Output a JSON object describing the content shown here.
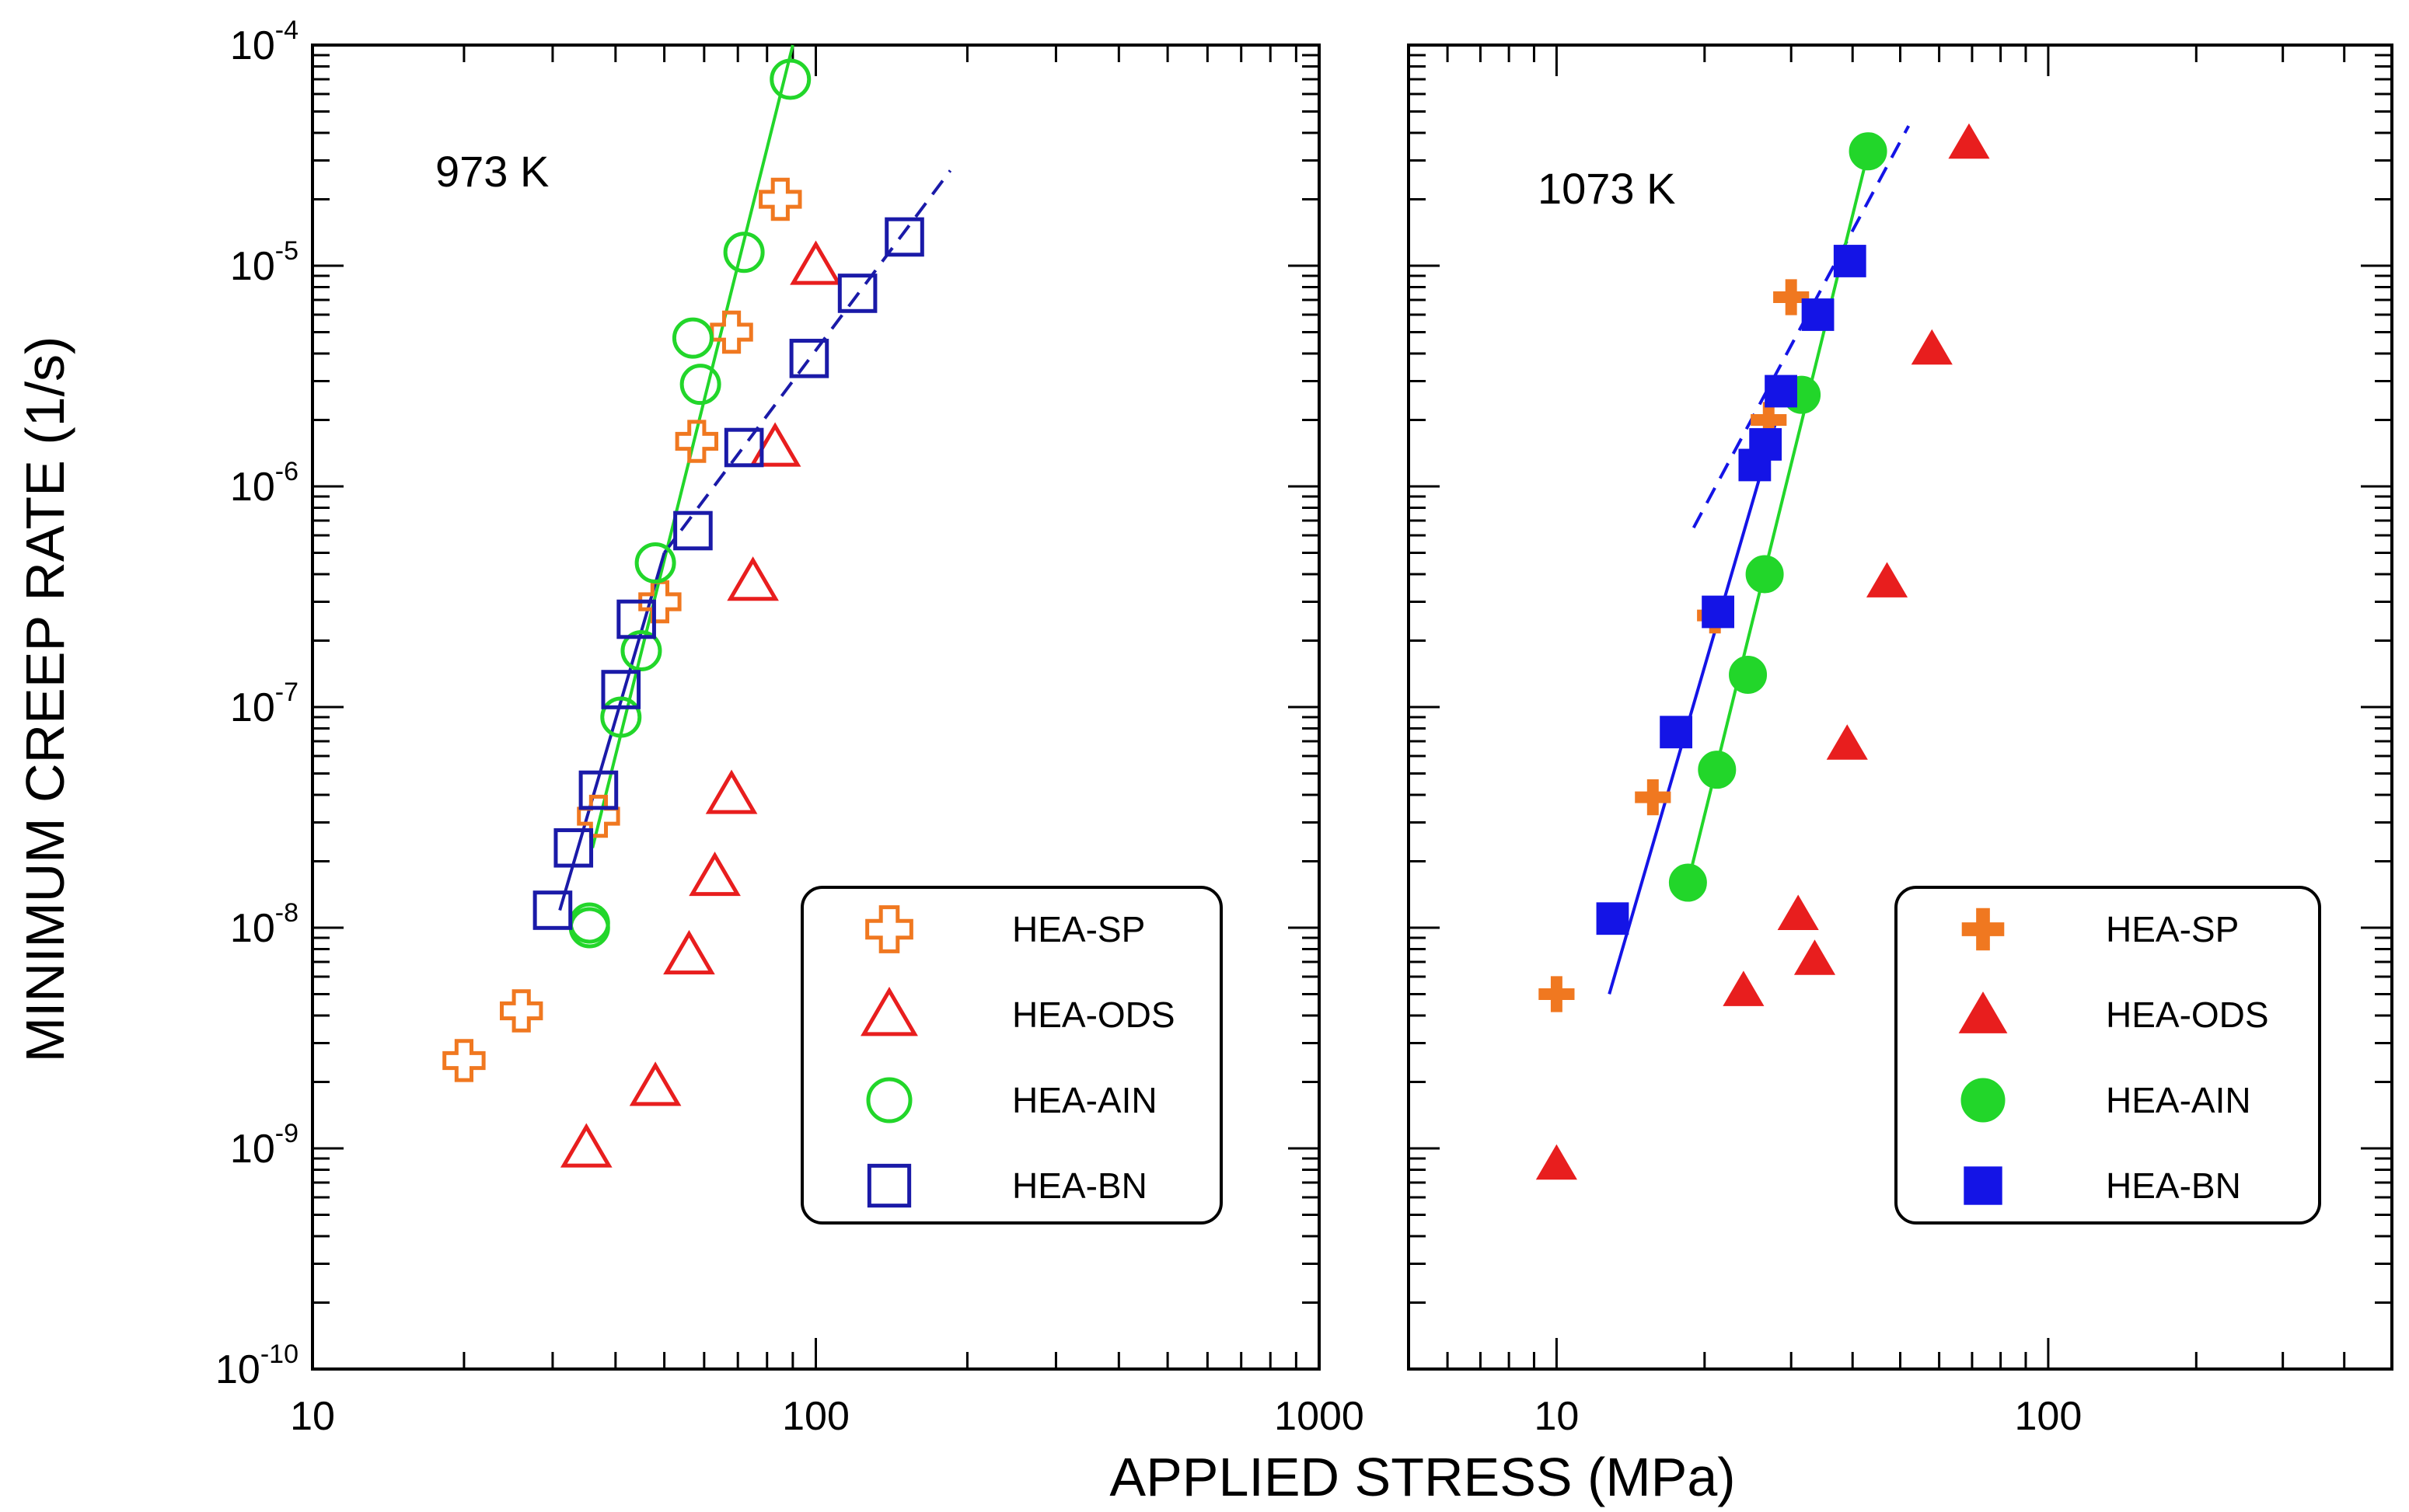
{
  "chart_data": {
    "type": "scatter",
    "xlabel": "APPLIED STRESS (MPa)",
    "ylabel": "MINIMUM CREEP RATE (1/s)",
    "y_tick_labels": [
      "10^-10",
      "10^-9",
      "10^-8",
      "10^-7",
      "10^-6",
      "10^-5",
      "10^-4"
    ],
    "y_scale": "log",
    "x_scale": "log",
    "ylim": [
      1e-10,
      0.0001
    ],
    "legend_position": "bottom-right",
    "panels": [
      {
        "id": "973K",
        "label": "973 K",
        "xlim": [
          10,
          1000
        ],
        "x_tick_labels": [
          "10",
          "100",
          "1000"
        ],
        "legend": [
          {
            "key": "sp",
            "name": "HEA-SP"
          },
          {
            "key": "ods",
            "name": "HEA-ODS"
          },
          {
            "key": "ain",
            "name": "HEA-AIN"
          },
          {
            "key": "bn",
            "name": "HEA-BN"
          }
        ],
        "series": [
          {
            "key": "sp",
            "name": "HEA-SP",
            "marker": "plus",
            "filled": false,
            "color": "#f07820",
            "points": [
              [
                20,
                2.5e-09
              ],
              [
                26,
                4.2e-09
              ],
              [
                37,
                3.2e-08
              ],
              [
                49,
                3e-07
              ],
              [
                58,
                1.6e-06
              ],
              [
                68,
                5e-06
              ],
              [
                85,
                2e-05
              ]
            ]
          },
          {
            "key": "ods",
            "name": "HEA-ODS",
            "marker": "triangle",
            "filled": false,
            "color": "#e81e1e",
            "points": [
              [
                35,
                1e-09
              ],
              [
                48,
                1.9e-09
              ],
              [
                56,
                7.5e-09
              ],
              [
                63,
                1.7e-08
              ],
              [
                68,
                4e-08
              ],
              [
                75,
                3.7e-07
              ],
              [
                83,
                1.5e-06
              ],
              [
                100,
                1e-05
              ]
            ]
          },
          {
            "key": "ain",
            "name": "HEA-AIN",
            "marker": "circle",
            "filled": false,
            "color": "#22d62a",
            "points": [
              [
                35.5,
                1e-08
              ],
              [
                35.5,
                1.05e-08
              ],
              [
                41,
                9e-08
              ],
              [
                45,
                1.8e-07
              ],
              [
                48,
                4.5e-07
              ],
              [
                57,
                4.7e-06
              ],
              [
                59,
                2.9e-06
              ],
              [
                72,
                1.15e-05
              ],
              [
                89,
                7e-05
              ]
            ]
          },
          {
            "key": "bn",
            "name": "HEA-BN",
            "marker": "square",
            "filled": false,
            "color": "#1a1aa8",
            "points": [
              [
                30,
                1.2e-08
              ],
              [
                33,
                2.3e-08
              ],
              [
                37,
                4.2e-08
              ],
              [
                41,
                1.2e-07
              ],
              [
                44,
                2.5e-07
              ],
              [
                57,
                6.3e-07
              ],
              [
                72,
                1.5e-06
              ],
              [
                97,
                3.8e-06
              ],
              [
                121,
                7.5e-06
              ],
              [
                150,
                1.35e-05
              ]
            ]
          }
        ],
        "fit_lines": [
          {
            "series": "ain",
            "color": "#22d62a",
            "dash": false,
            "from": [
              36,
              2.3e-08
            ],
            "to": [
              90,
              0.0001
            ]
          },
          {
            "series": "bn",
            "color": "#1a1aa8",
            "dash": false,
            "from": [
              31,
              1.2e-08
            ],
            "to": [
              50,
              5e-07
            ]
          },
          {
            "series": "bn",
            "color": "#1a1aa8",
            "dash": true,
            "from": [
              50,
              5e-07
            ],
            "to": [
              185,
              2.7e-05
            ]
          }
        ]
      },
      {
        "id": "1073K",
        "label": "1073 K",
        "xlim": [
          5,
          500
        ],
        "x_tick_labels": [
          "10",
          "100"
        ],
        "legend": [
          {
            "key": "sp",
            "name": "HEA-SP"
          },
          {
            "key": "ods",
            "name": "HEA-ODS"
          },
          {
            "key": "ain",
            "name": "HEA-AIN"
          },
          {
            "key": "bn",
            "name": "HEA-BN"
          }
        ],
        "series": [
          {
            "key": "sp",
            "name": "HEA-SP",
            "marker": "plus",
            "filled": true,
            "color": "#f07820",
            "points": [
              [
                10,
                5e-09
              ],
              [
                15.7,
                3.9e-08
              ],
              [
                21,
                2.6e-07
              ],
              [
                27,
                2e-06
              ],
              [
                30,
                7.2e-06
              ]
            ]
          },
          {
            "key": "ods",
            "name": "HEA-ODS",
            "marker": "triangle",
            "filled": true,
            "color": "#e81e1e",
            "points": [
              [
                10,
                8.5e-10
              ],
              [
                24,
                5.2e-09
              ],
              [
                31,
                1.15e-08
              ],
              [
                33.5,
                7.2e-09
              ],
              [
                39,
                6.8e-08
              ],
              [
                47,
                3.7e-07
              ],
              [
                58,
                4.2e-06
              ],
              [
                69,
                3.6e-05
              ]
            ]
          },
          {
            "key": "ain",
            "name": "HEA-AIN",
            "marker": "circle",
            "filled": true,
            "color": "#22d62a",
            "points": [
              [
                18.5,
                1.6e-08
              ],
              [
                21.2,
                5.2e-08
              ],
              [
                24.5,
                1.4e-07
              ],
              [
                26.5,
                4e-07
              ],
              [
                31.5,
                2.6e-06
              ],
              [
                43,
                3.3e-05
              ]
            ]
          },
          {
            "key": "bn",
            "name": "HEA-BN",
            "marker": "square",
            "filled": true,
            "color": "#1414e6",
            "points": [
              [
                13,
                1.1e-08
              ],
              [
                17.5,
                7.7e-08
              ],
              [
                21.3,
                2.7e-07
              ],
              [
                25.3,
                1.25e-06
              ],
              [
                26.6,
                1.55e-06
              ],
              [
                28.6,
                2.7e-06
              ],
              [
                34,
                6e-06
              ],
              [
                39.5,
                1.05e-05
              ]
            ]
          }
        ],
        "fit_lines": [
          {
            "series": "bn",
            "color": "#1414e6",
            "dash": false,
            "from": [
              12.8,
              5e-09
            ],
            "to": [
              28,
              2e-06
            ]
          },
          {
            "series": "bn",
            "color": "#1414e6",
            "dash": true,
            "from": [
              19,
              6.5e-07
            ],
            "to": [
              52,
              4.3e-05
            ]
          },
          {
            "series": "ain",
            "color": "#22d62a",
            "dash": false,
            "from": [
              18.5,
              1.6e-08
            ],
            "to": [
              44,
              4e-05
            ]
          }
        ]
      }
    ]
  }
}
